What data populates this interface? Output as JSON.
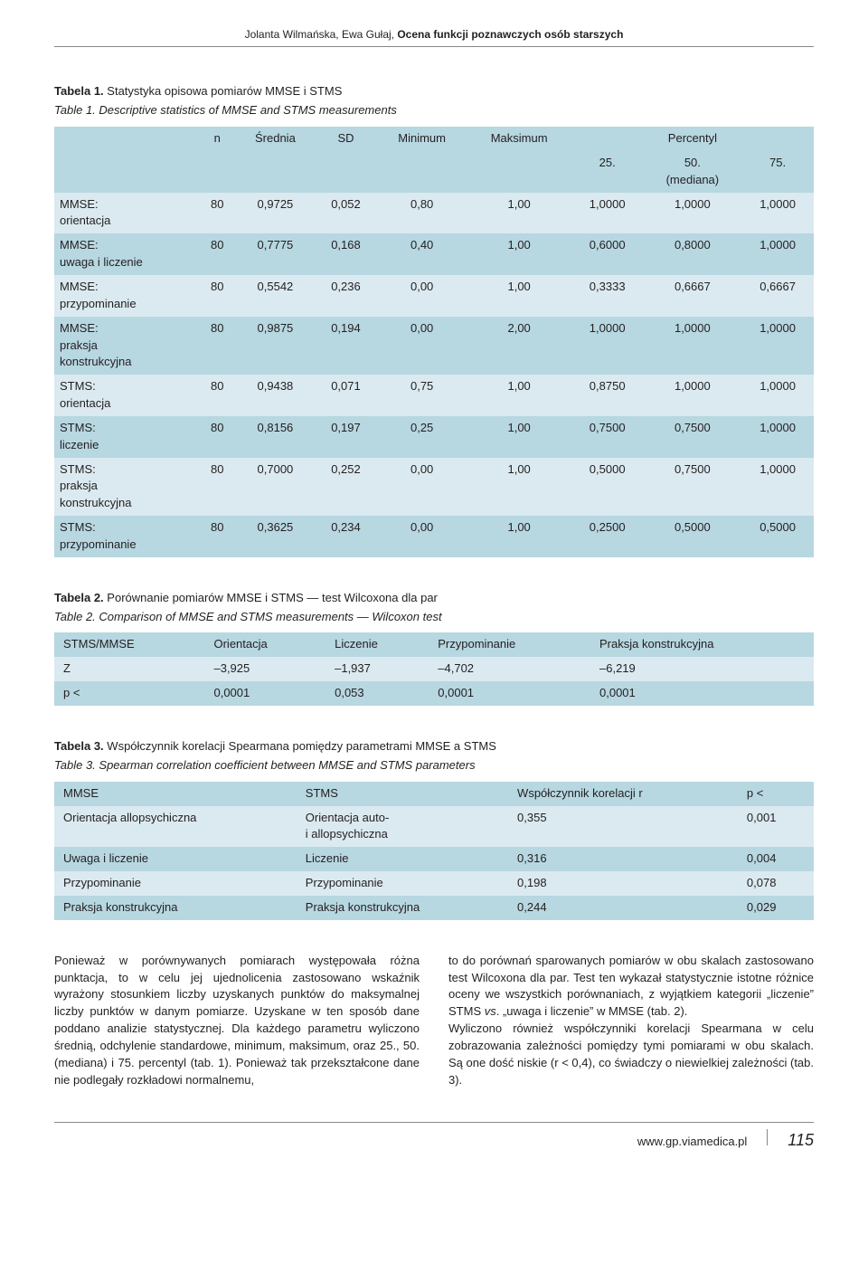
{
  "running_head": {
    "authors": "Jolanta Wilmańska, Ewa Gułaj, ",
    "title_bold": "Ocena funkcji poznawczych osób starszych"
  },
  "table1": {
    "caption_label": "Tabela 1.",
    "caption_rest": " Statystyka opisowa pomiarów MMSE i STMS",
    "subtitle_label": "Table 1.",
    "subtitle_rest": " Descriptive statistics of MMSE and STMS measurements",
    "header": {
      "blank": "",
      "n": "n",
      "mean": "Średnia",
      "sd": "SD",
      "min": "Minimum",
      "max": "Maksimum",
      "perc": "Percentyl",
      "p25": "25.",
      "p50a": "50.",
      "p50b": "(mediana)",
      "p75": "75."
    },
    "rows": [
      {
        "label": "MMSE:\norientacja",
        "n": "80",
        "mean": "0,9725",
        "sd": "0,052",
        "min": "0,80",
        "max": "1,00",
        "p25": "1,0000",
        "p50": "1,0000",
        "p75": "1,0000"
      },
      {
        "label": "MMSE:\nuwaga i liczenie",
        "n": "80",
        "mean": "0,7775",
        "sd": "0,168",
        "min": "0,40",
        "max": "1,00",
        "p25": "0,6000",
        "p50": "0,8000",
        "p75": "1,0000"
      },
      {
        "label": "MMSE:\nprzypominanie",
        "n": "80",
        "mean": "0,5542",
        "sd": "0,236",
        "min": "0,00",
        "max": "1,00",
        "p25": "0,3333",
        "p50": "0,6667",
        "p75": "0,6667"
      },
      {
        "label": "MMSE:\npraksja\nkonstrukcyjna",
        "n": "80",
        "mean": "0,9875",
        "sd": "0,194",
        "min": "0,00",
        "max": "2,00",
        "p25": "1,0000",
        "p50": "1,0000",
        "p75": "1,0000"
      },
      {
        "label": "STMS:\norientacja",
        "n": "80",
        "mean": "0,9438",
        "sd": "0,071",
        "min": "0,75",
        "max": "1,00",
        "p25": "0,8750",
        "p50": "1,0000",
        "p75": "1,0000"
      },
      {
        "label": "STMS:\nliczenie",
        "n": "80",
        "mean": "0,8156",
        "sd": "0,197",
        "min": "0,25",
        "max": "1,00",
        "p25": "0,7500",
        "p50": "0,7500",
        "p75": "1,0000"
      },
      {
        "label": "STMS:\npraksja\nkonstrukcyjna",
        "n": "80",
        "mean": "0,7000",
        "sd": "0,252",
        "min": "0,00",
        "max": "1,00",
        "p25": "0,5000",
        "p50": "0,7500",
        "p75": "1,0000"
      },
      {
        "label": "STMS:\nprzypominanie",
        "n": "80",
        "mean": "0,3625",
        "sd": "0,234",
        "min": "0,00",
        "max": "1,00",
        "p25": "0,2500",
        "p50": "0,5000",
        "p75": "0,5000"
      }
    ]
  },
  "table2": {
    "caption_label": "Tabela 2.",
    "caption_rest": " Porównanie pomiarów MMSE i STMS — test Wilcoxona dla par",
    "subtitle_label": "Table 2.",
    "subtitle_rest": " Comparison of MMSE and STMS measurements — Wilcoxon test",
    "header": [
      "STMS/MMSE",
      "Orientacja",
      "Liczenie",
      "Przypominanie",
      "Praksja konstrukcyjna"
    ],
    "rows": [
      [
        "Z",
        "–3,925",
        "–1,937",
        "–4,702",
        "–6,219"
      ],
      [
        "p <",
        "0,0001",
        "0,053",
        "0,0001",
        "0,0001"
      ]
    ]
  },
  "table3": {
    "caption_label": "Tabela 3.",
    "caption_rest": " Współczynnik korelacji Spearmana pomiędzy parametrami MMSE a STMS",
    "subtitle_label": "Table 3.",
    "subtitle_rest": " Spearman correlation coefficient between MMSE and STMS parameters",
    "header": [
      "MMSE",
      "STMS",
      "Współczynnik korelacji r",
      "p <"
    ],
    "rows": [
      [
        "Orientacja allopsychiczna",
        "Orientacja auto-\ni allopsychiczna",
        "0,355",
        "0,001"
      ],
      [
        "Uwaga i liczenie",
        "Liczenie",
        "0,316",
        "0,004"
      ],
      [
        "Przypominanie",
        "Przypominanie",
        "0,198",
        "0,078"
      ],
      [
        "Praksja konstrukcyjna",
        "Praksja konstrukcyjna",
        "0,244",
        "0,029"
      ]
    ]
  },
  "body": {
    "left": "Ponieważ w porównywanych pomiarach występowała różna punktacja, to w celu jej ujednolicenia zastosowano wskaźnik wyrażony stosunkiem liczby uzyskanych punktów do maksymalnej liczby punktów w danym pomiarze. Uzyskane w ten sposób dane poddano analizie statystycznej. Dla każdego parametru wyliczono średnią, odchylenie standardowe, minimum, maksimum, oraz 25., 50. (mediana) i 75. percentyl (tab. 1). Ponieważ tak przekształcone dane nie podlegały rozkładowi normalnemu,",
    "right": "to do porównań sparowanych pomiarów w obu skalach zastosowano test Wilcoxona dla par. Test ten wykazał statystycznie istotne różnice oceny we wszystkich porównaniach, z wyjątkiem kategorii „liczenie” STMS vs. „uwaga i liczenie” w MMSE (tab. 2).\nWyliczono również współczynniki korelacji Spearmana w celu zobrazowania zależności pomiędzy tymi pomiarami w obu skalach. Są one dość niskie (r < 0,4), co świadczy o niewielkiej zależności (tab. 3)."
  },
  "footer": {
    "url": "www.gp.viamedica.pl",
    "page": "115"
  },
  "colors": {
    "row_odd": "#b7d7e1",
    "row_even": "#dbeaf0",
    "text": "#231f20"
  }
}
